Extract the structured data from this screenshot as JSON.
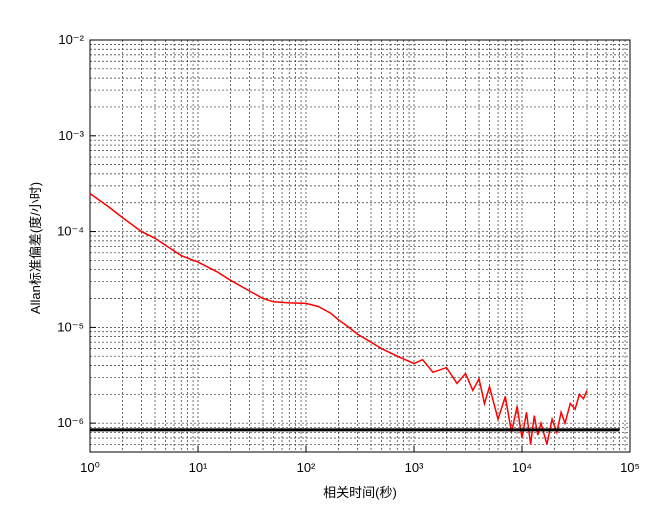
{
  "chart_data": {
    "type": "line",
    "xlabel": "相关时间(秒)",
    "ylabel": "Allan标准偏差(度/小时)",
    "log_x": true,
    "log_y": true,
    "grid": true,
    "xlim": [
      1,
      100000
    ],
    "xticks": [
      {
        "value": 1,
        "label": "10⁰"
      },
      {
        "value": 10,
        "label": "10¹"
      },
      {
        "value": 100,
        "label": "10²"
      },
      {
        "value": 1000,
        "label": "10³"
      },
      {
        "value": 10000,
        "label": "10⁴"
      },
      {
        "value": 100000,
        "label": "10⁵"
      }
    ],
    "ylim": [
      5e-07,
      0.01
    ],
    "yticks": [
      {
        "value": 1e-06,
        "label": "10⁻⁶"
      },
      {
        "value": 1e-05,
        "label": "10⁻⁵"
      },
      {
        "value": 0.0001,
        "label": "10⁻⁴"
      },
      {
        "value": 0.001,
        "label": "10⁻³"
      },
      {
        "value": 0.01,
        "label": "10⁻²"
      }
    ],
    "series": [
      {
        "color": "#ff0000",
        "x": [
          1,
          1.5,
          2,
          3,
          4,
          5,
          7,
          10,
          15,
          20,
          30,
          40,
          50,
          70,
          100,
          130,
          170,
          200,
          250,
          300,
          400,
          500,
          700,
          1000,
          1200,
          1500,
          2000,
          2500,
          3000,
          3500,
          4000,
          4500,
          5000,
          6000,
          7000,
          8000,
          9000,
          10000,
          11000,
          12000,
          13000,
          14000,
          15000,
          17000,
          19000,
          21000,
          23000,
          25000,
          28000,
          31000,
          34000,
          37000,
          40000
        ],
        "values": [
          0.00025,
          0.00018,
          0.00014,
          0.0001,
          8.5e-05,
          7.2e-05,
          5.6e-05,
          4.8e-05,
          3.8e-05,
          3.1e-05,
          2.4e-05,
          2e-05,
          1.85e-05,
          1.8e-05,
          1.78e-05,
          1.65e-05,
          1.4e-05,
          1.2e-05,
          1e-05,
          8.5e-06,
          7e-06,
          6e-06,
          5e-06,
          4.2e-06,
          4.6e-06,
          3.4e-06,
          3.8e-06,
          2.6e-06,
          3.3e-06,
          2.2e-06,
          2.9e-06,
          1.6e-06,
          2.4e-06,
          1.1e-06,
          1.9e-06,
          8e-07,
          1.5e-06,
          7e-07,
          1.3e-06,
          6e-07,
          1.2e-06,
          7.5e-07,
          1e-06,
          6e-07,
          1.1e-06,
          8e-07,
          1.3e-06,
          1e-06,
          1.6e-06,
          1.4e-06,
          2e-06,
          1.8e-06,
          2.2e-06
        ]
      },
      {
        "color": "#000000",
        "x": [
          1,
          80000
        ],
        "values": [
          8.5e-07,
          8.5e-07
        ]
      }
    ]
  }
}
